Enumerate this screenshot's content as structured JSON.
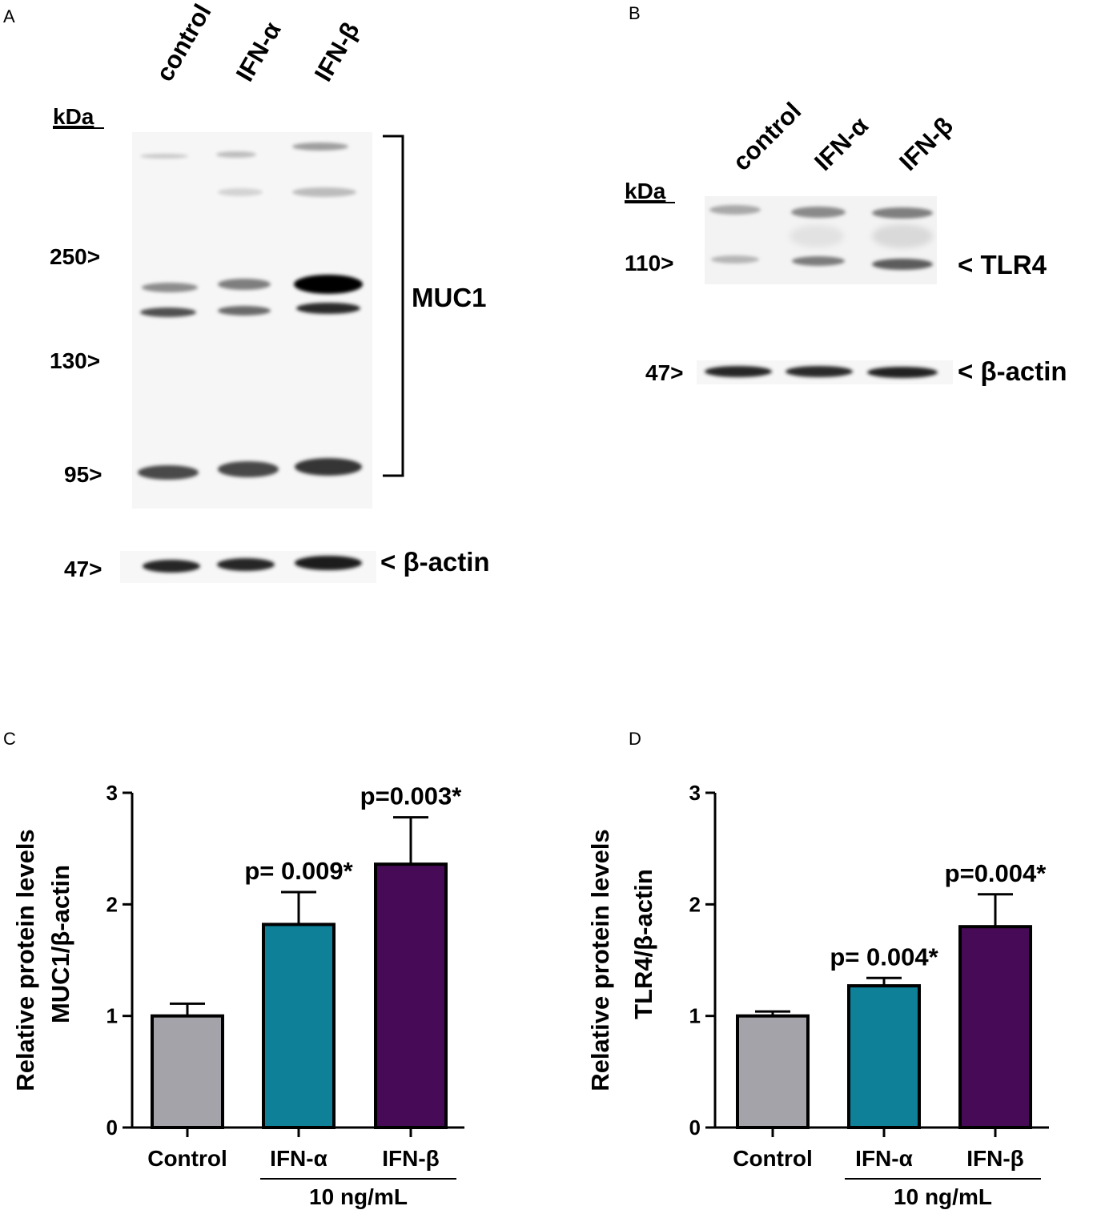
{
  "panels": {
    "A": {
      "label": "A",
      "lanes": [
        "control",
        "IFN-α",
        "IFN-β"
      ],
      "kda_label": "kDa",
      "markers": [
        "250>",
        "130>",
        "95>",
        "47>"
      ],
      "band_labels": [
        "MUC1",
        "< β-actin"
      ]
    },
    "B": {
      "label": "B",
      "lanes": [
        "control",
        "IFN-α",
        "IFN-β"
      ],
      "kda_label": "kDa",
      "markers": [
        "110>",
        "47>"
      ],
      "band_labels": [
        "< TLR4",
        "< β-actin"
      ]
    },
    "C": {
      "label": "C"
    },
    "D": {
      "label": "D"
    }
  },
  "chart_data": [
    {
      "type": "bar",
      "panel": "C",
      "categories": [
        "Control",
        "IFN-α",
        "IFN-β"
      ],
      "values": [
        1.0,
        1.82,
        2.36
      ],
      "errors": [
        0.11,
        0.29,
        0.42
      ],
      "colors": [
        "#a3a3a9",
        "#0e8199",
        "#470a57"
      ],
      "ylabel_line1": "Relative protein levels",
      "ylabel_line2": "MUC1/β-actin",
      "ylim": [
        0,
        3
      ],
      "yticks": [
        "0",
        "1",
        "2",
        "3"
      ],
      "group_label": "10 ng/mL",
      "annotations": [
        "",
        "p= 0.009*",
        "p=0.003*"
      ]
    },
    {
      "type": "bar",
      "panel": "D",
      "categories": [
        "Control",
        "IFN-α",
        "IFN-β"
      ],
      "values": [
        1.0,
        1.27,
        1.8
      ],
      "errors": [
        0.04,
        0.07,
        0.29
      ],
      "colors": [
        "#a3a3a9",
        "#0e8199",
        "#470a57"
      ],
      "ylabel_line1": "Relative protein levels",
      "ylabel_line2": "TLR4/β-actin",
      "ylim": [
        0,
        3
      ],
      "yticks": [
        "0",
        "1",
        "2",
        "3"
      ],
      "group_label": "10 ng/mL",
      "annotations": [
        "",
        "p= 0.004*",
        "p=0.004*"
      ]
    }
  ]
}
